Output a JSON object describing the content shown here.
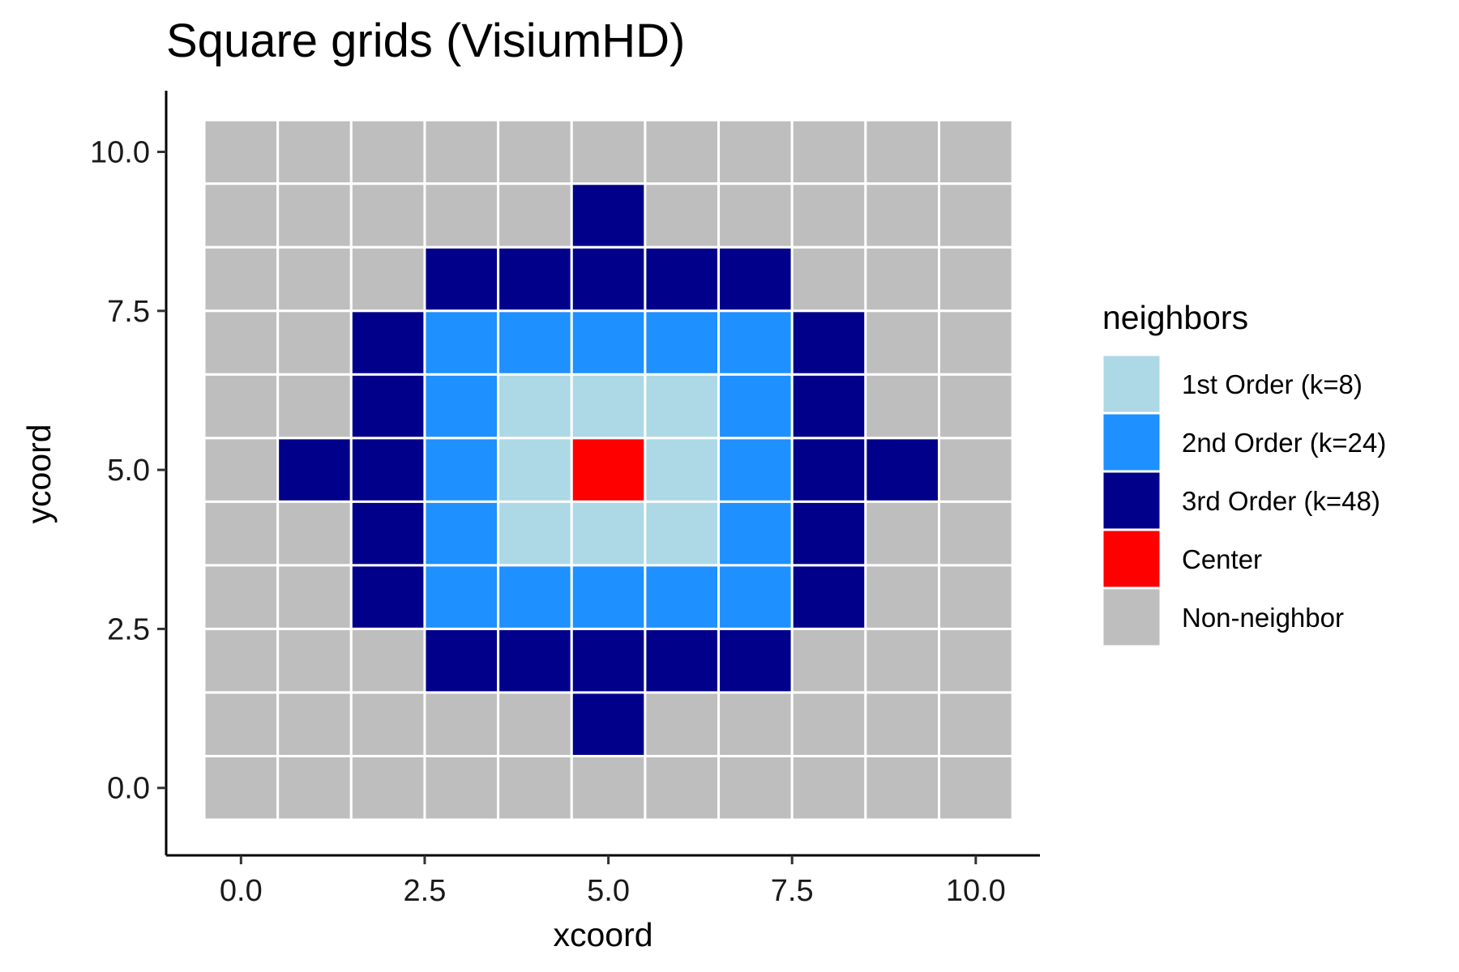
{
  "chart_data": {
    "type": "heatmap",
    "title": "Square grids (VisiumHD)",
    "xlabel": "xcoord",
    "ylabel": "ycoord",
    "xlim": [
      -0.5,
      10.5
    ],
    "ylim": [
      -0.5,
      10.5
    ],
    "x_ticks": [
      0,
      2.5,
      5,
      7.5,
      10
    ],
    "y_ticks": [
      0,
      2.5,
      5,
      7.5,
      10
    ],
    "x_tick_labels": [
      "0.0",
      "2.5",
      "5.0",
      "7.5",
      "10.0"
    ],
    "y_tick_labels": [
      "0.0",
      "2.5",
      "5.0",
      "7.5",
      "10.0"
    ],
    "grid": false,
    "legend": {
      "title": "neighbors",
      "position": "right",
      "entries": [
        {
          "key": "first",
          "label": "1st Order (k=8)",
          "color": "#ADD8E6"
        },
        {
          "key": "second",
          "label": "2nd Order (k=24)",
          "color": "#1E90FF"
        },
        {
          "key": "third",
          "label": "3rd Order (k=48)",
          "color": "#00008B"
        },
        {
          "key": "center",
          "label": "Center",
          "color": "#FF0000"
        },
        {
          "key": "non",
          "label": "Non-neighbor",
          "color": "#BEBEBE"
        }
      ]
    },
    "category_codes": {
      "N": "non",
      "1": "first",
      "2": "second",
      "3": "third",
      "C": "center"
    },
    "rows_top_to_bottom": [
      "NNNNNNNNNNN",
      "NNNNN3NNNNN",
      "NNN33333NNN",
      "NN3222223NN",
      "NN3211123NN",
      "N3321C1233N",
      "NN3211123NN",
      "NN3222223NN",
      "NNN33333NNN",
      "NNNNN3NNNNN",
      "NNNNNNNNNNN"
    ],
    "y_values_top_to_bottom": [
      10,
      9,
      8,
      7,
      6,
      5,
      4,
      3,
      2,
      1,
      0
    ],
    "x_values": [
      0,
      1,
      2,
      3,
      4,
      5,
      6,
      7,
      8,
      9,
      10
    ]
  }
}
